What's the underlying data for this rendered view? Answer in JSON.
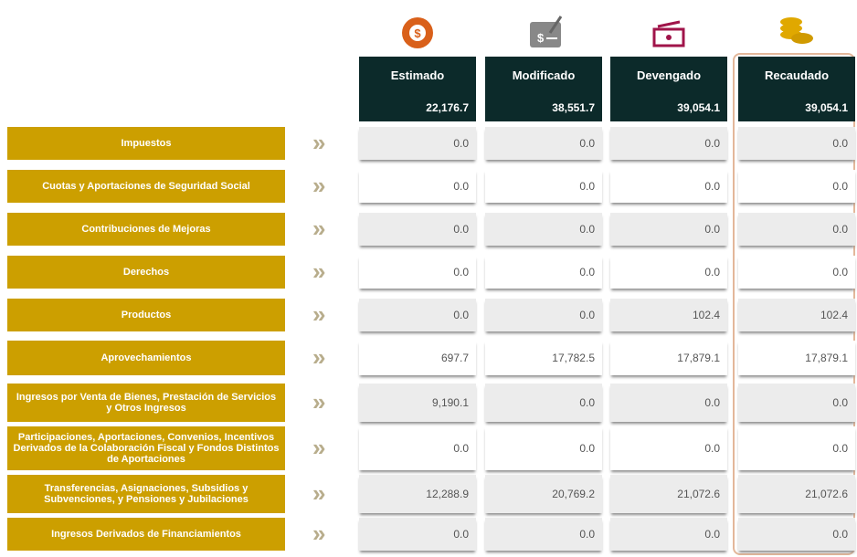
{
  "columns": [
    {
      "name": "Estimado",
      "total": "22,176.7"
    },
    {
      "name": "Modificado",
      "total": "38,551.7"
    },
    {
      "name": "Devengado",
      "total": "39,054.1"
    },
    {
      "name": "Recaudado",
      "total": "39,054.1"
    }
  ],
  "rows": [
    {
      "label": "Impuestos",
      "values": [
        "0.0",
        "0.0",
        "0.0",
        "0.0"
      ]
    },
    {
      "label": "Cuotas y Aportaciones de Seguridad Social",
      "values": [
        "0.0",
        "0.0",
        "0.0",
        "0.0"
      ]
    },
    {
      "label": "Contribuciones de Mejoras",
      "values": [
        "0.0",
        "0.0",
        "0.0",
        "0.0"
      ]
    },
    {
      "label": "Derechos",
      "values": [
        "0.0",
        "0.0",
        "0.0",
        "0.0"
      ]
    },
    {
      "label": "Productos",
      "values": [
        "0.0",
        "0.0",
        "102.4",
        "102.4"
      ]
    },
    {
      "label": "Aprovechamientos",
      "values": [
        "697.7",
        "17,782.5",
        "17,879.1",
        "17,879.1"
      ]
    },
    {
      "label": "Ingresos por Venta de Bienes, Prestación de Servicios y Otros Ingresos",
      "values": [
        "9,190.1",
        "0.0",
        "0.0",
        "0.0"
      ]
    },
    {
      "label": "Participaciones, Aportaciones, Convenios, Incentivos Derivados de la Colaboración Fiscal y Fondos Distintos de Aportaciones",
      "values": [
        "0.0",
        "0.0",
        "0.0",
        "0.0"
      ]
    },
    {
      "label": "Transferencias, Asignaciones, Subsidios y Subvenciones, y Pensiones y Jubilaciones",
      "values": [
        "12,288.9",
        "20,769.2",
        "21,072.6",
        "21,072.6"
      ]
    },
    {
      "label": "Ingresos Derivados de Financiamientos",
      "values": [
        "0.0",
        "0.0",
        "0.0",
        "0.0"
      ]
    }
  ]
}
